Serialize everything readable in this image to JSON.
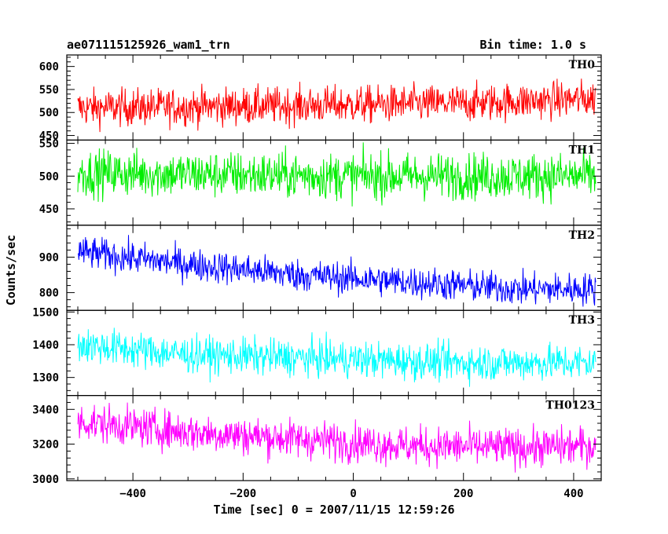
{
  "header": {
    "title": "ae071115125926_wam1_trn",
    "bin_time": "Bin time: 1.0 s"
  },
  "chart_data": {
    "type": "line",
    "xlabel": "Time [sec] 0 = 2007/11/15 12:59:26",
    "ylabel": "Counts/sec",
    "xlim": [
      -520,
      450
    ],
    "x_range": [
      -500,
      440
    ],
    "x_ticks": [
      -400,
      -200,
      0,
      200,
      400
    ],
    "x_tick_labels": [
      "−400",
      "−200",
      "0",
      "200",
      "400"
    ],
    "panels": [
      {
        "name": "TH0",
        "color": "#ff0000",
        "ylim": [
          440,
          625
        ],
        "y_ticks": [
          450,
          500,
          550,
          600
        ],
        "y_tick_labels": [
          "450",
          "500",
          "550",
          "600"
        ],
        "trend": [
          [
            -500,
            510
          ],
          [
            -100,
            515
          ],
          [
            200,
            520
          ],
          [
            440,
            530
          ]
        ],
        "amplitude": 40
      },
      {
        "name": "TH1",
        "color": "#00ee00",
        "ylim": [
          425,
          555
        ],
        "y_ticks": [
          450,
          500,
          550
        ],
        "y_tick_labels": [
          "450",
          "500",
          "550"
        ],
        "trend": [
          [
            -500,
            505
          ],
          [
            0,
            500
          ],
          [
            440,
            500
          ]
        ],
        "amplitude": 35
      },
      {
        "name": "TH2",
        "color": "#0000ff",
        "ylim": [
          750,
          990
        ],
        "y_ticks": [
          800,
          900
        ],
        "y_tick_labels": [
          "800",
          "900"
        ],
        "trend": [
          [
            -500,
            915
          ],
          [
            -300,
            880
          ],
          [
            -100,
            850
          ],
          [
            100,
            830
          ],
          [
            300,
            810
          ],
          [
            440,
            810
          ]
        ],
        "amplitude": 45
      },
      {
        "name": "TH3",
        "color": "#00ffff",
        "ylim": [
          1245,
          1505
        ],
        "y_ticks": [
          1300,
          1400,
          1500
        ],
        "y_tick_labels": [
          "1300",
          "1400",
          "1500"
        ],
        "trend": [
          [
            -500,
            1400
          ],
          [
            -300,
            1370
          ],
          [
            0,
            1355
          ],
          [
            200,
            1345
          ],
          [
            440,
            1345
          ]
        ],
        "amplitude": 55
      },
      {
        "name": "TH0123",
        "color": "#ff00ff",
        "ylim": [
          2990,
          3480
        ],
        "y_ticks": [
          3000,
          3200,
          3400
        ],
        "y_tick_labels": [
          "3000",
          "3200",
          "3400"
        ],
        "trend": [
          [
            -500,
            3330
          ],
          [
            -300,
            3270
          ],
          [
            -100,
            3230
          ],
          [
            100,
            3190
          ],
          [
            300,
            3180
          ],
          [
            440,
            3190
          ]
        ],
        "amplitude": 110
      }
    ]
  }
}
